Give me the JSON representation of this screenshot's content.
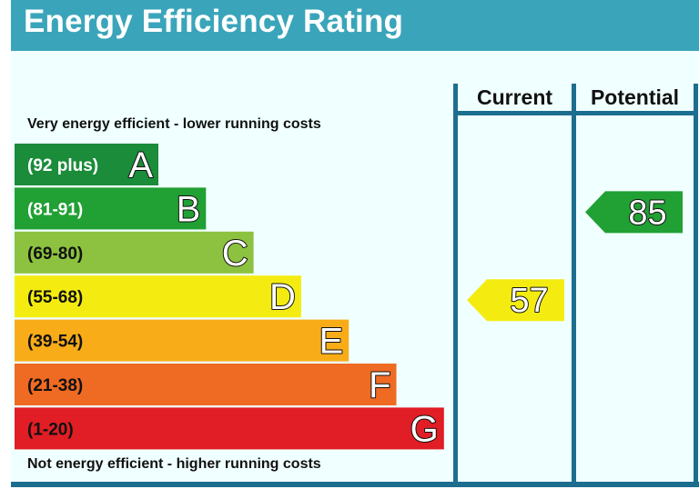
{
  "title": "Energy Efficiency Rating",
  "columns": {
    "current": "Current",
    "potential": "Potential"
  },
  "notes": {
    "top": "Very energy efficient - lower running costs",
    "bottom": "Not energy efficient - higher running costs"
  },
  "colors": {
    "header": "#3aa5ba",
    "panel": "#f0ffff",
    "rule": "#1c6e8e"
  },
  "chart_data": {
    "type": "bar",
    "title": "Energy Efficiency Rating",
    "categories": [
      "A",
      "B",
      "C",
      "D",
      "E",
      "F",
      "G"
    ],
    "bands": [
      {
        "letter": "A",
        "range": "(92 plus)",
        "min": 92,
        "max": 100,
        "color": "#1a8c3a",
        "label_color": "#ffffff"
      },
      {
        "letter": "B",
        "range": "(81-91)",
        "min": 81,
        "max": 91,
        "color": "#21a034",
        "label_color": "#ffffff"
      },
      {
        "letter": "C",
        "range": "(69-80)",
        "min": 69,
        "max": 80,
        "color": "#8cc23f",
        "label_color": "#111111"
      },
      {
        "letter": "D",
        "range": "(55-68)",
        "min": 55,
        "max": 68,
        "color": "#f4ec10",
        "label_color": "#111111"
      },
      {
        "letter": "E",
        "range": "(39-54)",
        "min": 39,
        "max": 54,
        "color": "#f8ac18",
        "label_color": "#111111"
      },
      {
        "letter": "F",
        "range": "(21-38)",
        "min": 21,
        "max": 38,
        "color": "#ef6a22",
        "label_color": "#111111"
      },
      {
        "letter": "G",
        "range": "(1-20)",
        "min": 1,
        "max": 20,
        "color": "#e11d25",
        "label_color": "#111111"
      }
    ],
    "ratings": [
      {
        "name": "Current",
        "value": 57,
        "band": "D",
        "color": "#f4ec10"
      },
      {
        "name": "Potential",
        "value": 85,
        "band": "B",
        "color": "#21a034"
      }
    ]
  }
}
